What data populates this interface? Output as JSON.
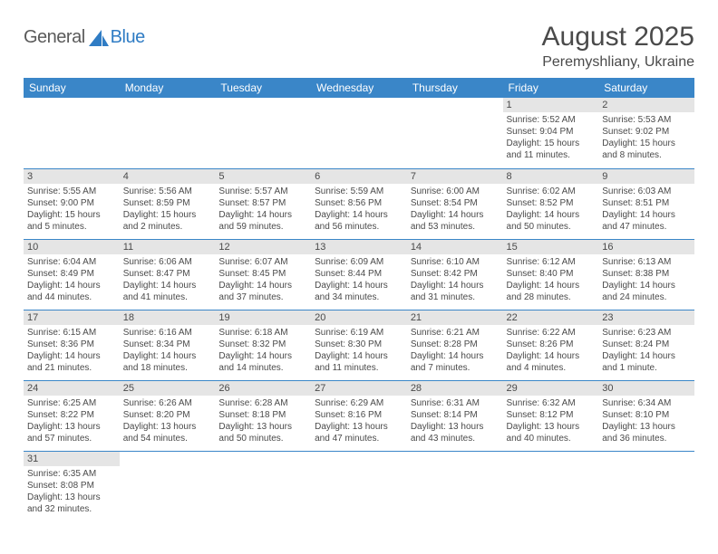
{
  "logo": {
    "part1": "General",
    "part2": "Blue"
  },
  "title": "August 2025",
  "location": "Peremyshliany, Ukraine",
  "colors": {
    "header_bg": "#3a86c8",
    "header_text": "#ffffff",
    "daynum_bg": "#e5e5e5",
    "text": "#4a4a4a",
    "row_border": "#3a86c8",
    "logo_blue": "#2f7cc4",
    "logo_gray": "#5a5a5a"
  },
  "daysOfWeek": [
    "Sunday",
    "Monday",
    "Tuesday",
    "Wednesday",
    "Thursday",
    "Friday",
    "Saturday"
  ],
  "weeks": [
    [
      null,
      null,
      null,
      null,
      null,
      {
        "num": "1",
        "sunrise": "5:52 AM",
        "sunset": "9:04 PM",
        "daylight": "15 hours and 11 minutes."
      },
      {
        "num": "2",
        "sunrise": "5:53 AM",
        "sunset": "9:02 PM",
        "daylight": "15 hours and 8 minutes."
      }
    ],
    [
      {
        "num": "3",
        "sunrise": "5:55 AM",
        "sunset": "9:00 PM",
        "daylight": "15 hours and 5 minutes."
      },
      {
        "num": "4",
        "sunrise": "5:56 AM",
        "sunset": "8:59 PM",
        "daylight": "15 hours and 2 minutes."
      },
      {
        "num": "5",
        "sunrise": "5:57 AM",
        "sunset": "8:57 PM",
        "daylight": "14 hours and 59 minutes."
      },
      {
        "num": "6",
        "sunrise": "5:59 AM",
        "sunset": "8:56 PM",
        "daylight": "14 hours and 56 minutes."
      },
      {
        "num": "7",
        "sunrise": "6:00 AM",
        "sunset": "8:54 PM",
        "daylight": "14 hours and 53 minutes."
      },
      {
        "num": "8",
        "sunrise": "6:02 AM",
        "sunset": "8:52 PM",
        "daylight": "14 hours and 50 minutes."
      },
      {
        "num": "9",
        "sunrise": "6:03 AM",
        "sunset": "8:51 PM",
        "daylight": "14 hours and 47 minutes."
      }
    ],
    [
      {
        "num": "10",
        "sunrise": "6:04 AM",
        "sunset": "8:49 PM",
        "daylight": "14 hours and 44 minutes."
      },
      {
        "num": "11",
        "sunrise": "6:06 AM",
        "sunset": "8:47 PM",
        "daylight": "14 hours and 41 minutes."
      },
      {
        "num": "12",
        "sunrise": "6:07 AM",
        "sunset": "8:45 PM",
        "daylight": "14 hours and 37 minutes."
      },
      {
        "num": "13",
        "sunrise": "6:09 AM",
        "sunset": "8:44 PM",
        "daylight": "14 hours and 34 minutes."
      },
      {
        "num": "14",
        "sunrise": "6:10 AM",
        "sunset": "8:42 PM",
        "daylight": "14 hours and 31 minutes."
      },
      {
        "num": "15",
        "sunrise": "6:12 AM",
        "sunset": "8:40 PM",
        "daylight": "14 hours and 28 minutes."
      },
      {
        "num": "16",
        "sunrise": "6:13 AM",
        "sunset": "8:38 PM",
        "daylight": "14 hours and 24 minutes."
      }
    ],
    [
      {
        "num": "17",
        "sunrise": "6:15 AM",
        "sunset": "8:36 PM",
        "daylight": "14 hours and 21 minutes."
      },
      {
        "num": "18",
        "sunrise": "6:16 AM",
        "sunset": "8:34 PM",
        "daylight": "14 hours and 18 minutes."
      },
      {
        "num": "19",
        "sunrise": "6:18 AM",
        "sunset": "8:32 PM",
        "daylight": "14 hours and 14 minutes."
      },
      {
        "num": "20",
        "sunrise": "6:19 AM",
        "sunset": "8:30 PM",
        "daylight": "14 hours and 11 minutes."
      },
      {
        "num": "21",
        "sunrise": "6:21 AM",
        "sunset": "8:28 PM",
        "daylight": "14 hours and 7 minutes."
      },
      {
        "num": "22",
        "sunrise": "6:22 AM",
        "sunset": "8:26 PM",
        "daylight": "14 hours and 4 minutes."
      },
      {
        "num": "23",
        "sunrise": "6:23 AM",
        "sunset": "8:24 PM",
        "daylight": "14 hours and 1 minute."
      }
    ],
    [
      {
        "num": "24",
        "sunrise": "6:25 AM",
        "sunset": "8:22 PM",
        "daylight": "13 hours and 57 minutes."
      },
      {
        "num": "25",
        "sunrise": "6:26 AM",
        "sunset": "8:20 PM",
        "daylight": "13 hours and 54 minutes."
      },
      {
        "num": "26",
        "sunrise": "6:28 AM",
        "sunset": "8:18 PM",
        "daylight": "13 hours and 50 minutes."
      },
      {
        "num": "27",
        "sunrise": "6:29 AM",
        "sunset": "8:16 PM",
        "daylight": "13 hours and 47 minutes."
      },
      {
        "num": "28",
        "sunrise": "6:31 AM",
        "sunset": "8:14 PM",
        "daylight": "13 hours and 43 minutes."
      },
      {
        "num": "29",
        "sunrise": "6:32 AM",
        "sunset": "8:12 PM",
        "daylight": "13 hours and 40 minutes."
      },
      {
        "num": "30",
        "sunrise": "6:34 AM",
        "sunset": "8:10 PM",
        "daylight": "13 hours and 36 minutes."
      }
    ],
    [
      {
        "num": "31",
        "sunrise": "6:35 AM",
        "sunset": "8:08 PM",
        "daylight": "13 hours and 32 minutes."
      },
      null,
      null,
      null,
      null,
      null,
      null
    ]
  ],
  "labels": {
    "sunrise": "Sunrise:",
    "sunset": "Sunset:",
    "daylight": "Daylight:"
  }
}
